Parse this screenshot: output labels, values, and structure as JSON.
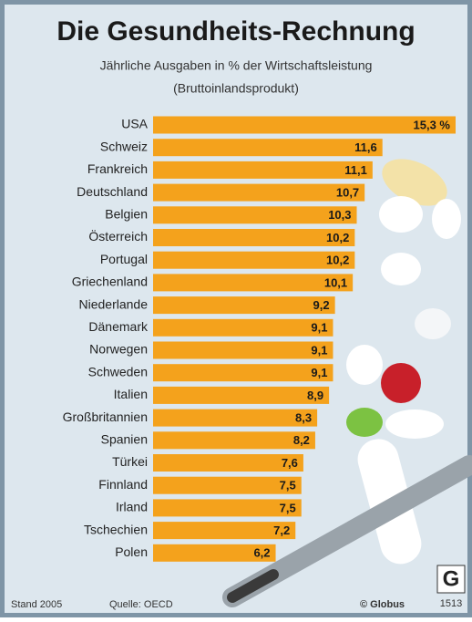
{
  "chart_data": {
    "type": "bar",
    "orientation": "horizontal",
    "title": "Die Gesundheits-Rechnung",
    "subtitle": [
      "Jährliche Ausgaben in % der Wirtschaftsleistung",
      "(Bruttoinlandsprodukt)"
    ],
    "categories": [
      "USA",
      "Schweiz",
      "Frankreich",
      "Deutschland",
      "Belgien",
      "Österreich",
      "Portugal",
      "Griechenland",
      "Niederlande",
      "Dänemark",
      "Norwegen",
      "Schweden",
      "Italien",
      "Großbritannien",
      "Spanien",
      "Türkei",
      "Finnland",
      "Irland",
      "Tschechien",
      "Polen"
    ],
    "values": [
      15.3,
      11.6,
      11.1,
      10.7,
      10.3,
      10.2,
      10.2,
      10.1,
      9.2,
      9.1,
      9.1,
      9.1,
      8.9,
      8.3,
      8.2,
      7.6,
      7.5,
      7.5,
      7.2,
      6.2
    ],
    "value_labels": [
      "15,3 %",
      "11,6",
      "11,1",
      "10,7",
      "10,3",
      "10,2",
      "10,2",
      "10,1",
      "9,2",
      "9,1",
      "9,1",
      "9,1",
      "8,9",
      "8,3",
      "8,2",
      "7,6",
      "7,5",
      "7,5",
      "7,2",
      "6,2"
    ],
    "color": "#f4a21c"
  },
  "footer": {
    "date": "Stand 2005",
    "source": "Quelle: OECD",
    "credit": "© Globus",
    "logo": "G",
    "number": "1513"
  }
}
